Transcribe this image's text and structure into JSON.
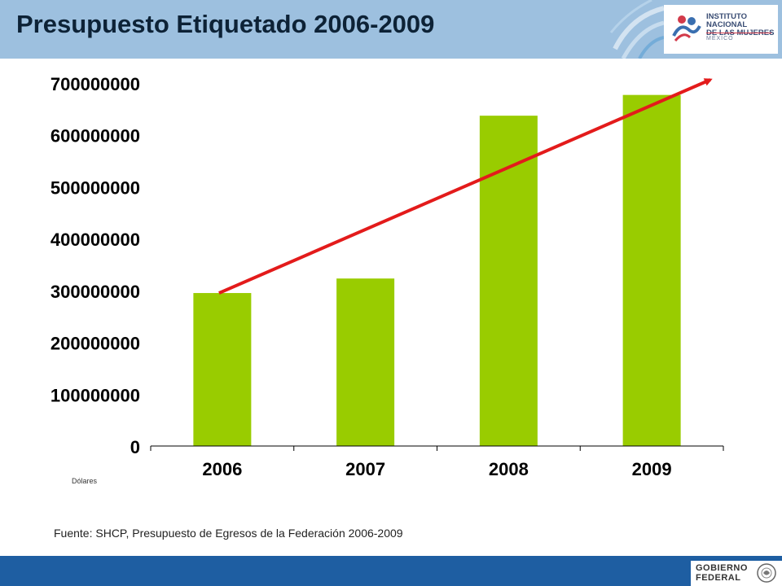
{
  "header": {
    "title": "Presupuesto Etiquetado 2006-2009",
    "logo_line1": "INSTITUTO NACIONAL",
    "logo_line2": "DE LAS MUJERES",
    "logo_line3": "MÉXICO"
  },
  "chart_data": {
    "type": "bar",
    "categories": [
      "2006",
      "2007",
      "2008",
      "2009"
    ],
    "values": [
      295000000,
      323000000,
      637000000,
      677000000
    ],
    "ylim": [
      0,
      700000000
    ],
    "yticks": [
      0,
      100000000,
      200000000,
      300000000,
      400000000,
      500000000,
      600000000,
      700000000
    ],
    "ytick_labels": [
      "0",
      "100000000",
      "200000000",
      "300000000",
      "400000000",
      "500000000",
      "600000000",
      "700000000"
    ],
    "bar_color": "#99cc00",
    "trend_arrow_color": "#e31b1b",
    "grid": false,
    "legend": false
  },
  "unit_note": "Dólares",
  "source": "Fuente: SHCP, Presupuesto de Egresos de la Federación 2006-2009",
  "footer": {
    "gov_line1": "GOBIERNO",
    "gov_line2": "FEDERAL"
  },
  "colors": {
    "header": "#9dc0df",
    "footer": "#1e5ea2",
    "title": "#0d2236"
  }
}
